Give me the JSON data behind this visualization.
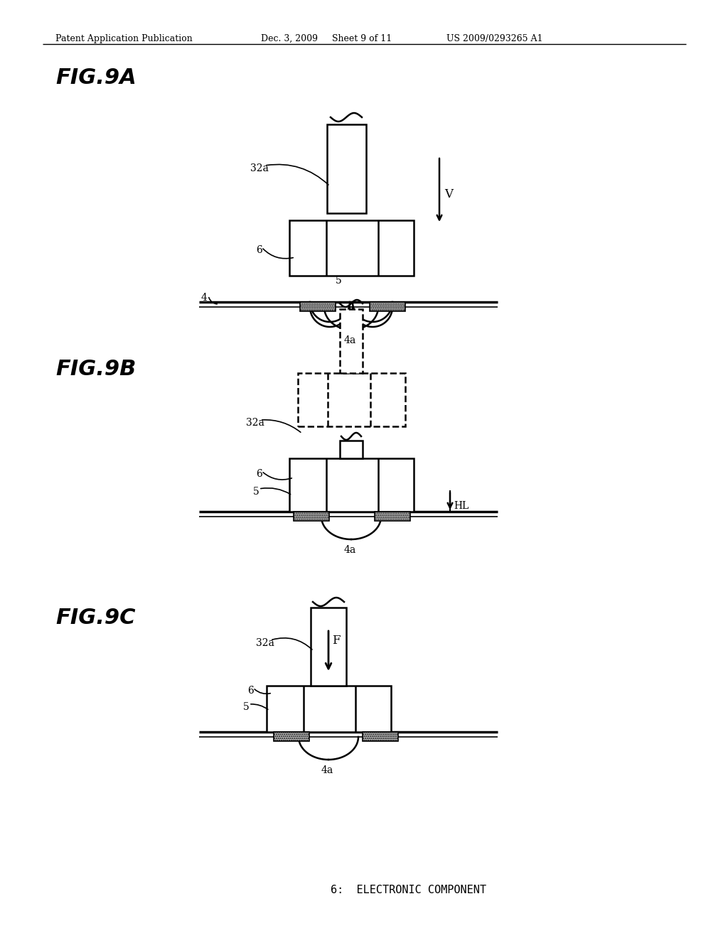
{
  "bg_color": "#ffffff",
  "line_color": "#000000",
  "header_text": "Patent Application Publication",
  "header_date": "Dec. 3, 2009",
  "header_sheet": "Sheet 9 of 11",
  "header_patent": "US 2009/0293265 A1",
  "fig_labels": [
    "FIG.9A",
    "FIG.9B",
    "FIG.9C"
  ],
  "footer_text": "6:  ELECTRONIC COMPONENT",
  "lw_main": 1.8,
  "lw_board": 2.5
}
